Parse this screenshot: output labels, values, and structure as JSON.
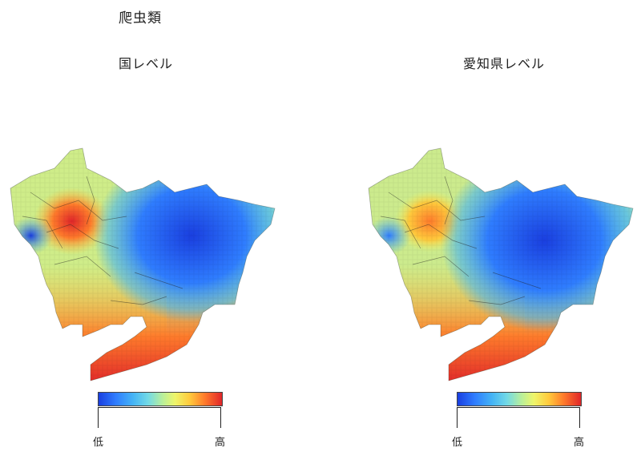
{
  "title": "爬虫類",
  "panels": [
    {
      "title": "国レベル",
      "legend": {
        "low": "低",
        "high": "高"
      }
    },
    {
      "title": "愛知県レベル",
      "legend": {
        "low": "低",
        "high": "高"
      }
    }
  ],
  "colors": {
    "deep_blue": "#1a3fe0",
    "blue": "#2f7dff",
    "cyan": "#45b4f5",
    "light_cyan": "#72d9e6",
    "light_green": "#b9ef9a",
    "yellow": "#eef56a",
    "orange": "#ffc93c",
    "dark_orange": "#ff7b2b",
    "red": "#e0262a"
  }
}
